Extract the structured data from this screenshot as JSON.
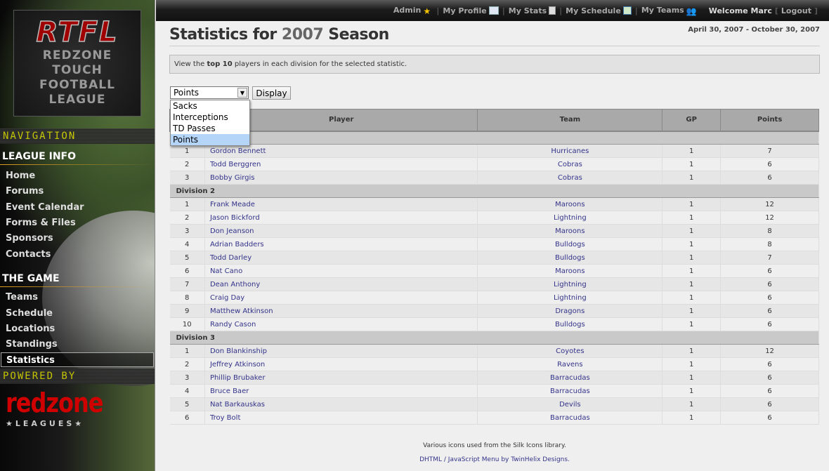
{
  "sidebar": {
    "logo": {
      "title": "RTFL",
      "lines": [
        "REDZONE",
        "TOUCH",
        "FOOTBALL",
        "LEAGUE"
      ]
    },
    "navigation_label": "NAVIGATION",
    "sections": [
      {
        "title": "LEAGUE INFO",
        "items": [
          "Home",
          "Forums",
          "Event Calendar",
          "Forms & Files",
          "Sponsors",
          "Contacts"
        ]
      },
      {
        "title": "THE GAME",
        "items": [
          "Teams",
          "Schedule",
          "Locations",
          "Standings",
          "Statistics"
        ]
      }
    ],
    "active_item": "Statistics",
    "powered_by_label": "POWERED BY",
    "powered_logo": {
      "name": "redzone",
      "sub": "★LEAGUES★"
    }
  },
  "topbar": {
    "links": [
      {
        "label": "Admin",
        "icon": "star-icon"
      },
      {
        "label": "My Profile",
        "icon": "vcard-icon"
      },
      {
        "label": "My Stats",
        "icon": "calculator-icon"
      },
      {
        "label": "My Schedule",
        "icon": "calendar-icon"
      },
      {
        "label": "My Teams",
        "icon": "group-icon"
      }
    ],
    "welcome": "Welcome Marc",
    "logout": "Logout"
  },
  "page": {
    "title_prefix": "Statistics for ",
    "title_year": "2007",
    "title_suffix": " Season",
    "dates": "April 30, 2007 - October 30, 2007",
    "info_pre": "View the ",
    "info_bold": "top 10",
    "info_post": " players in each division for the selected statistic."
  },
  "controls": {
    "selected": "Points",
    "options": [
      "Sacks",
      "Interceptions",
      "TD Passes",
      "Points"
    ],
    "display_label": "Display"
  },
  "table": {
    "headers": [
      "",
      "Player",
      "Team",
      "GP",
      "Points"
    ],
    "divisions": [
      {
        "name": "",
        "rows": [
          [
            "1",
            "Gordon Bennett",
            "Hurricanes",
            "1",
            "7"
          ],
          [
            "2",
            "Todd Berggren",
            "Cobras",
            "1",
            "6"
          ],
          [
            "3",
            "Bobby Girgis",
            "Cobras",
            "1",
            "6"
          ]
        ]
      },
      {
        "name": "Division 2",
        "rows": [
          [
            "1",
            "Frank Meade",
            "Maroons",
            "1",
            "12"
          ],
          [
            "2",
            "Jason Bickford",
            "Lightning",
            "1",
            "12"
          ],
          [
            "3",
            "Don Jeanson",
            "Maroons",
            "1",
            "8"
          ],
          [
            "4",
            "Adrian Badders",
            "Bulldogs",
            "1",
            "8"
          ],
          [
            "5",
            "Todd Darley",
            "Bulldogs",
            "1",
            "7"
          ],
          [
            "6",
            "Nat Cano",
            "Maroons",
            "1",
            "6"
          ],
          [
            "7",
            "Dean Anthony",
            "Lightning",
            "1",
            "6"
          ],
          [
            "8",
            "Craig Day",
            "Lightning",
            "1",
            "6"
          ],
          [
            "9",
            "Matthew Atkinson",
            "Dragons",
            "1",
            "6"
          ],
          [
            "10",
            "Randy Cason",
            "Bulldogs",
            "1",
            "6"
          ]
        ]
      },
      {
        "name": "Division 3",
        "rows": [
          [
            "1",
            "Don Blankinship",
            "Coyotes",
            "1",
            "12"
          ],
          [
            "2",
            "Jeffrey Atkinson",
            "Ravens",
            "1",
            "6"
          ],
          [
            "3",
            "Phillip Brubaker",
            "Barracudas",
            "1",
            "6"
          ],
          [
            "4",
            "Bruce Baer",
            "Barracudas",
            "1",
            "6"
          ],
          [
            "5",
            "Nat Barkauskas",
            "Devils",
            "1",
            "6"
          ],
          [
            "6",
            "Troy Bolt",
            "Barracudas",
            "1",
            "6"
          ]
        ]
      }
    ]
  },
  "footer": {
    "line1": "Various icons used from the Silk Icons library.",
    "line2": "DHTML / JavaScript Menu by TwinHelix Designs."
  }
}
